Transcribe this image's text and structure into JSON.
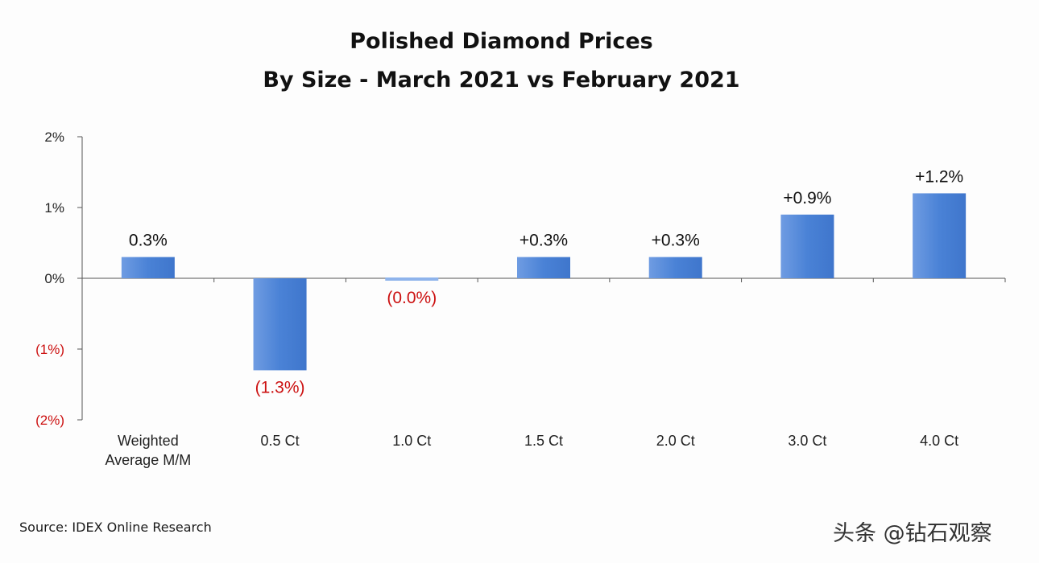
{
  "chart_data": {
    "type": "bar",
    "title": [
      "Polished Diamond Prices",
      "By Size - March 2021 vs February 2021"
    ],
    "xlabel": "",
    "ylabel": "",
    "categories": [
      "Weighted\nAverage M/M",
      "0.5 Ct",
      "1.0 Ct",
      "1.5 Ct",
      "2.0 Ct",
      "3.0 Ct",
      "4.0 Ct"
    ],
    "values": [
      0.3,
      -1.3,
      0.0,
      0.3,
      0.3,
      0.9,
      1.2
    ],
    "data_labels": [
      "0.3%",
      "(1.3%)",
      "(0.0%)",
      "+0.3%",
      "+0.3%",
      "+0.9%",
      "+1.2%"
    ],
    "y_ticks": [
      {
        "value": 2,
        "label": "2%"
      },
      {
        "value": 1,
        "label": "1%"
      },
      {
        "value": 0,
        "label": "0%"
      },
      {
        "value": -1,
        "label": "(1%)"
      },
      {
        "value": -2,
        "label": "(2%)"
      }
    ],
    "ylim": [
      -2,
      2
    ],
    "grid": false,
    "legend": "none",
    "colors": {
      "bar": "#4a82d6",
      "bar_light": "#8fb4ec",
      "positive_text": "#111111",
      "negative_text": "#cc1111",
      "axis": "#555555"
    }
  },
  "footer": {
    "source": "Source:  IDEX Online Research",
    "watermark": "头条 @钻石观察"
  }
}
